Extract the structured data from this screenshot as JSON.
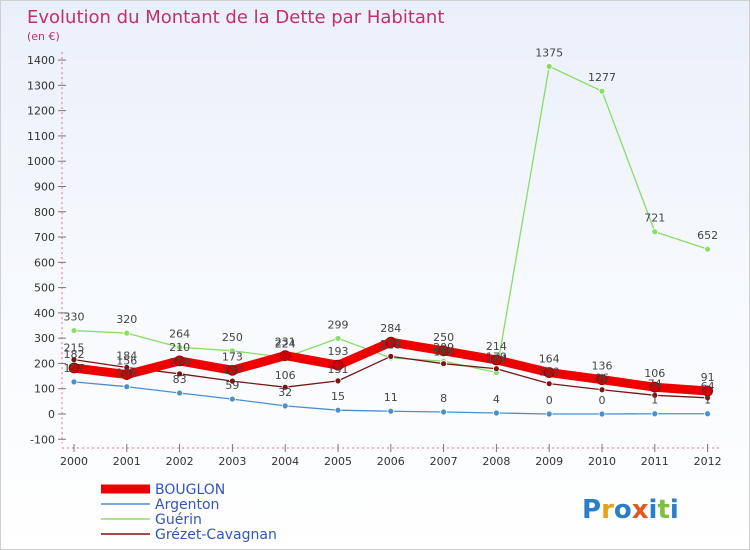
{
  "chart_data": {
    "type": "line",
    "title": "Evolution du Montant de la Dette par Habitant",
    "subtitle": "(en €)",
    "x": [
      "2000",
      "2001",
      "2002",
      "2003",
      "2004",
      "2005",
      "2006",
      "2007",
      "2008",
      "2009",
      "2010",
      "2011",
      "2012"
    ],
    "y_ticks": [
      "-100",
      "0",
      "100",
      "200",
      "300",
      "400",
      "500",
      "600",
      "700",
      "800",
      "900",
      "1000",
      "1100",
      "1200",
      "1300",
      "1400"
    ],
    "ylim": [
      -100,
      1400
    ],
    "grid": false,
    "legend": "bottom-left",
    "series": [
      {
        "name": "BOUGLON",
        "color": "#ee0000",
        "values": [
          182,
          156,
          210,
          173,
          231,
          193,
          284,
          250,
          214,
          164,
          136,
          106,
          91
        ],
        "labels": [
          "182",
          "156",
          "210",
          "173",
          "231",
          "193",
          "284",
          "250",
          "214",
          "164",
          "136",
          "106",
          "91"
        ]
      },
      {
        "name": "Argenton",
        "color": "#4a90d0",
        "values": [
          127,
          108,
          83,
          59,
          32,
          15,
          11,
          8,
          4,
          0,
          0,
          1,
          1
        ],
        "labels": [
          "127",
          "108",
          "83",
          "59",
          "32",
          "15",
          "11",
          "8",
          "4",
          "0",
          "0",
          "1",
          "1"
        ]
      },
      {
        "name": "Guérin",
        "color": "#88dd66",
        "values": [
          330,
          320,
          264,
          250,
          224,
          299,
          222,
          209,
          164,
          1375,
          1277,
          721,
          652
        ],
        "labels": [
          "330",
          "320",
          "264",
          "250",
          "224",
          "299",
          "222",
          "209",
          "164",
          "1375",
          "1277",
          "721",
          "652"
        ]
      },
      {
        "name": "Grézet-Cavagnan",
        "color": "#7a1515",
        "values": [
          215,
          184,
          159,
          130,
          106,
          131,
          228,
          199,
          179,
          120,
          96,
          74,
          64
        ],
        "labels": [
          "215",
          "184",
          "159",
          "130",
          "106",
          "131",
          "228",
          "199",
          "179",
          "120",
          "96",
          "74",
          "64"
        ]
      }
    ]
  },
  "branding": {
    "logo_text": "Proxiti"
  }
}
